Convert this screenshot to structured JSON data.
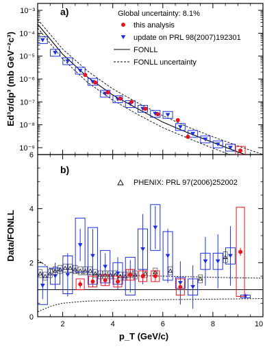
{
  "chart_data": [
    {
      "panel": "a)",
      "type": "scatter",
      "ylabel": "Ed³σ/dp³ (mb GeV⁻²c³)",
      "ylog": true,
      "xlim": [
        1,
        10
      ],
      "ylim": [
        5e-10,
        0.002
      ],
      "yticks": [
        1e-09,
        1e-08,
        1e-07,
        1e-06,
        1e-05,
        0.0001,
        0.001
      ],
      "ytick_labels": [
        "10⁻⁹",
        "10⁻⁸",
        "10⁻⁷",
        "10⁻⁶",
        "10⁻⁵",
        "10⁻⁴",
        "10⁻³"
      ],
      "annotation": "Global uncertainty: 8.1%",
      "legend": {
        "placement": "top-right",
        "entries": [
          {
            "label": "this analysis",
            "marker": "circle",
            "color": "#e8141c"
          },
          {
            "label": "update on PRL 98(2007)192301",
            "marker": "triangle-down",
            "color": "#1c2fe0"
          },
          {
            "label": "FONLL",
            "line": "solid"
          },
          {
            "label": "FONLL uncertainty",
            "line": "dashed"
          }
        ]
      },
      "series": [
        {
          "name": "this analysis",
          "color": "#e8141c",
          "marker": "circle",
          "x": [
            2.9,
            3.3,
            3.8,
            4.3,
            4.75,
            5.3,
            5.8,
            6.6,
            7.0,
            9.1
          ],
          "y": [
            1.5e-06,
            7e-07,
            2.6e-07,
            1.4e-07,
            1e-07,
            5e-08,
            2.9e-08,
            1.6e-08,
            3e-09,
            7.5e-10
          ]
        },
        {
          "name": "update on PRL 98(2007)192301",
          "color": "#1c2fe0",
          "marker": "triangle-down",
          "x": [
            1.2,
            1.7,
            2.2,
            2.7,
            3.2,
            3.7,
            4.2,
            4.7,
            5.2,
            5.7,
            6.2,
            6.7,
            7.2,
            7.7,
            8.2,
            8.7
          ],
          "y": [
            5e-05,
            1.4e-05,
            6e-06,
            2.3e-06,
            7.5e-07,
            2.3e-07,
            1.3e-07,
            8e-08,
            5e-08,
            3e-08,
            2.7e-08,
            8e-09,
            4e-09,
            2.3e-09,
            1.4e-09,
            1e-09
          ]
        }
      ],
      "fonll_curves": {
        "central": {
          "x": [
            1,
            2,
            3,
            4,
            5,
            6,
            7,
            8,
            9,
            10
          ],
          "y": [
            0.00025,
            1.2e-05,
            1.2e-06,
            2e-07,
            5e-08,
            1.3e-08,
            4.5e-09,
            1.7e-09,
            6.5e-10,
            2.6e-10
          ]
        },
        "upper": {
          "x": [
            1,
            2,
            3,
            4,
            5,
            6,
            7,
            8,
            9,
            10
          ],
          "y": [
            0.0004,
            2e-05,
            2.2e-06,
            3.7e-07,
            9e-08,
            2.5e-08,
            8e-09,
            3e-09,
            1.2e-09,
            5e-10
          ]
        },
        "lower": {
          "x": [
            1,
            2,
            3,
            4,
            5,
            6,
            7,
            8,
            9,
            10
          ],
          "y": [
            0.00017,
            7.5e-06,
            7e-07,
            1.2e-07,
            2.8e-08,
            7.5e-09,
            2.6e-09,
            9.5e-10,
            3.7e-10,
            1.5e-10
          ]
        }
      }
    },
    {
      "panel": "b)",
      "type": "scatter",
      "xlabel": "p_T (GeV/c)",
      "ylabel": "Data/FONLL",
      "xlim": [
        1,
        10
      ],
      "ylim": [
        0,
        6
      ],
      "xticks": [
        2,
        4,
        6,
        8,
        10
      ],
      "xtick_labels": [
        "2",
        "4",
        "6",
        "8",
        "10"
      ],
      "yticks": [
        0,
        2,
        4,
        6
      ],
      "ytick_labels": [
        "0",
        "2",
        "4",
        "6"
      ],
      "annotation": "PHENIX: PRL 97(2006)252002",
      "reference_line": 1,
      "fonll_uncertainty_band": {
        "x": [
          1.0,
          1.5,
          2.0,
          3.0,
          4.0,
          5.0,
          6.0,
          7.0,
          8.0,
          9.0,
          10.0
        ],
        "upper": [
          2.1,
          1.78,
          1.66,
          1.58,
          1.55,
          1.52,
          1.5,
          1.48,
          1.46,
          1.44,
          1.43
        ],
        "lower": [
          0.18,
          0.38,
          0.5,
          0.58,
          0.6,
          0.62,
          0.63,
          0.64,
          0.65,
          0.66,
          0.67
        ]
      },
      "series": [
        {
          "name": "this analysis",
          "color": "#e8141c",
          "marker": "circle",
          "x": [
            2.7,
            3.2,
            3.7,
            4.2,
            4.7,
            5.2,
            5.7,
            6.7,
            9.1
          ],
          "y": [
            1.2,
            1.3,
            1.35,
            1.3,
            1.55,
            1.5,
            1.5,
            1.1,
            2.4
          ],
          "err": [
            0.15,
            0.2,
            0.2,
            0.2,
            0.2,
            0.2,
            0.2,
            0.15,
            0.15
          ],
          "sys": [
            0.2,
            0.2,
            0.2,
            0.2,
            0.2,
            0.2,
            0.2,
            0.3,
            1.65
          ]
        },
        {
          "name": "update on PRL 98(2007)192301",
          "color": "#1c2fe0",
          "marker": "triangle-down",
          "x": [
            1.2,
            1.7,
            2.2,
            2.7,
            3.2,
            3.7,
            4.2,
            4.7,
            5.2,
            5.7,
            6.2,
            6.7,
            7.2,
            7.7,
            8.2,
            8.7,
            9.3
          ],
          "y": [
            1.15,
            1.5,
            1.55,
            2.65,
            2.25,
            1.85,
            1.6,
            1.5,
            2.5,
            3.3,
            2.25,
            1.25,
            1.1,
            2.05,
            2.05,
            2.25,
            0.75
          ],
          "err": [
            0.5,
            0.5,
            0.8,
            0.6,
            1.0,
            0.5,
            0.6,
            0.6,
            1.3,
            0.8,
            1.0,
            0.8,
            0.8,
            0.9,
            1.0,
            1.1,
            0.1
          ],
          "sys": [
            0.7,
            0.3,
            0.7,
            1.0,
            1.05,
            0.6,
            0.4,
            0.7,
            0.75,
            0.85,
            0.9,
            0.2,
            0.3,
            0.3,
            0.3,
            0.3,
            0.05
          ]
        },
        {
          "name": "PHENIX: PRL 97(2006)252002",
          "color": "#000000",
          "marker": "triangle-up-open",
          "x": [
            1.1,
            1.3,
            1.5,
            1.7,
            1.9,
            2.1,
            2.3,
            2.5,
            2.7,
            2.9,
            3.1,
            3.3,
            3.5,
            3.7,
            3.9,
            4.1,
            4.3,
            4.5,
            4.7,
            4.9,
            5.3,
            5.7,
            6.3,
            7.5,
            8.5
          ],
          "y": [
            1.6,
            1.5,
            1.6,
            1.7,
            1.75,
            1.8,
            1.8,
            1.75,
            1.7,
            1.7,
            1.7,
            1.6,
            1.55,
            1.55,
            1.55,
            1.55,
            1.5,
            1.5,
            1.6,
            1.55,
            1.6,
            1.65,
            1.7,
            1.4,
            2.2
          ],
          "sys": [
            0.15,
            0.15,
            0.15,
            0.15,
            0.15,
            0.15,
            0.15,
            0.15,
            0.15,
            0.15,
            0.15,
            0.15,
            0.15,
            0.15,
            0.15,
            0.15,
            0.15,
            0.15,
            0.15,
            0.15,
            0.15,
            0.15,
            0.15,
            0.15,
            0.2
          ]
        }
      ]
    }
  ]
}
